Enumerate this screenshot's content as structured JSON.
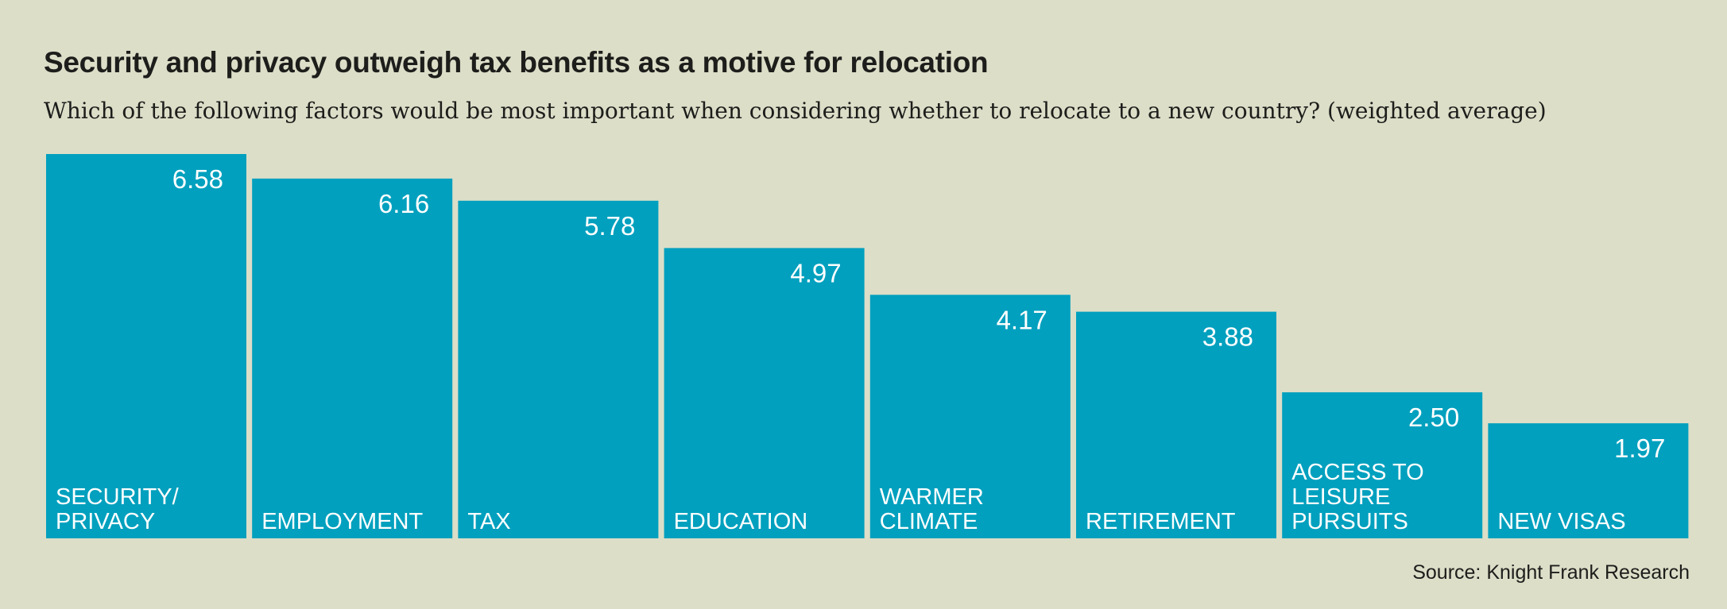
{
  "chart_data": {
    "type": "bar",
    "title": "Security and privacy outweigh tax benefits as a motive for relocation",
    "subtitle": "Which of the following factors would be most important when considering whether to relocate to a new country? (weighted average)",
    "categories": [
      [
        "SECURITY/",
        "PRIVACY"
      ],
      [
        "EMPLOYMENT"
      ],
      [
        "TAX"
      ],
      [
        "EDUCATION"
      ],
      [
        "WARMER",
        "CLIMATE"
      ],
      [
        "RETIREMENT"
      ],
      [
        "ACCESS TO",
        "LEISURE",
        "PURSUITS"
      ],
      [
        "NEW VISAS"
      ]
    ],
    "values": [
      6.58,
      6.16,
      5.78,
      4.97,
      4.17,
      3.88,
      2.5,
      1.97
    ],
    "value_labels": [
      "6.58",
      "6.16",
      "5.78",
      "4.97",
      "4.17",
      "3.88",
      "2.50",
      "1.97"
    ],
    "ylim": [
      0,
      6.58
    ],
    "grid": false,
    "bar_color": "#00a0be",
    "background_color": "#dcdec8",
    "source": "Source: Knight Frank Research"
  }
}
